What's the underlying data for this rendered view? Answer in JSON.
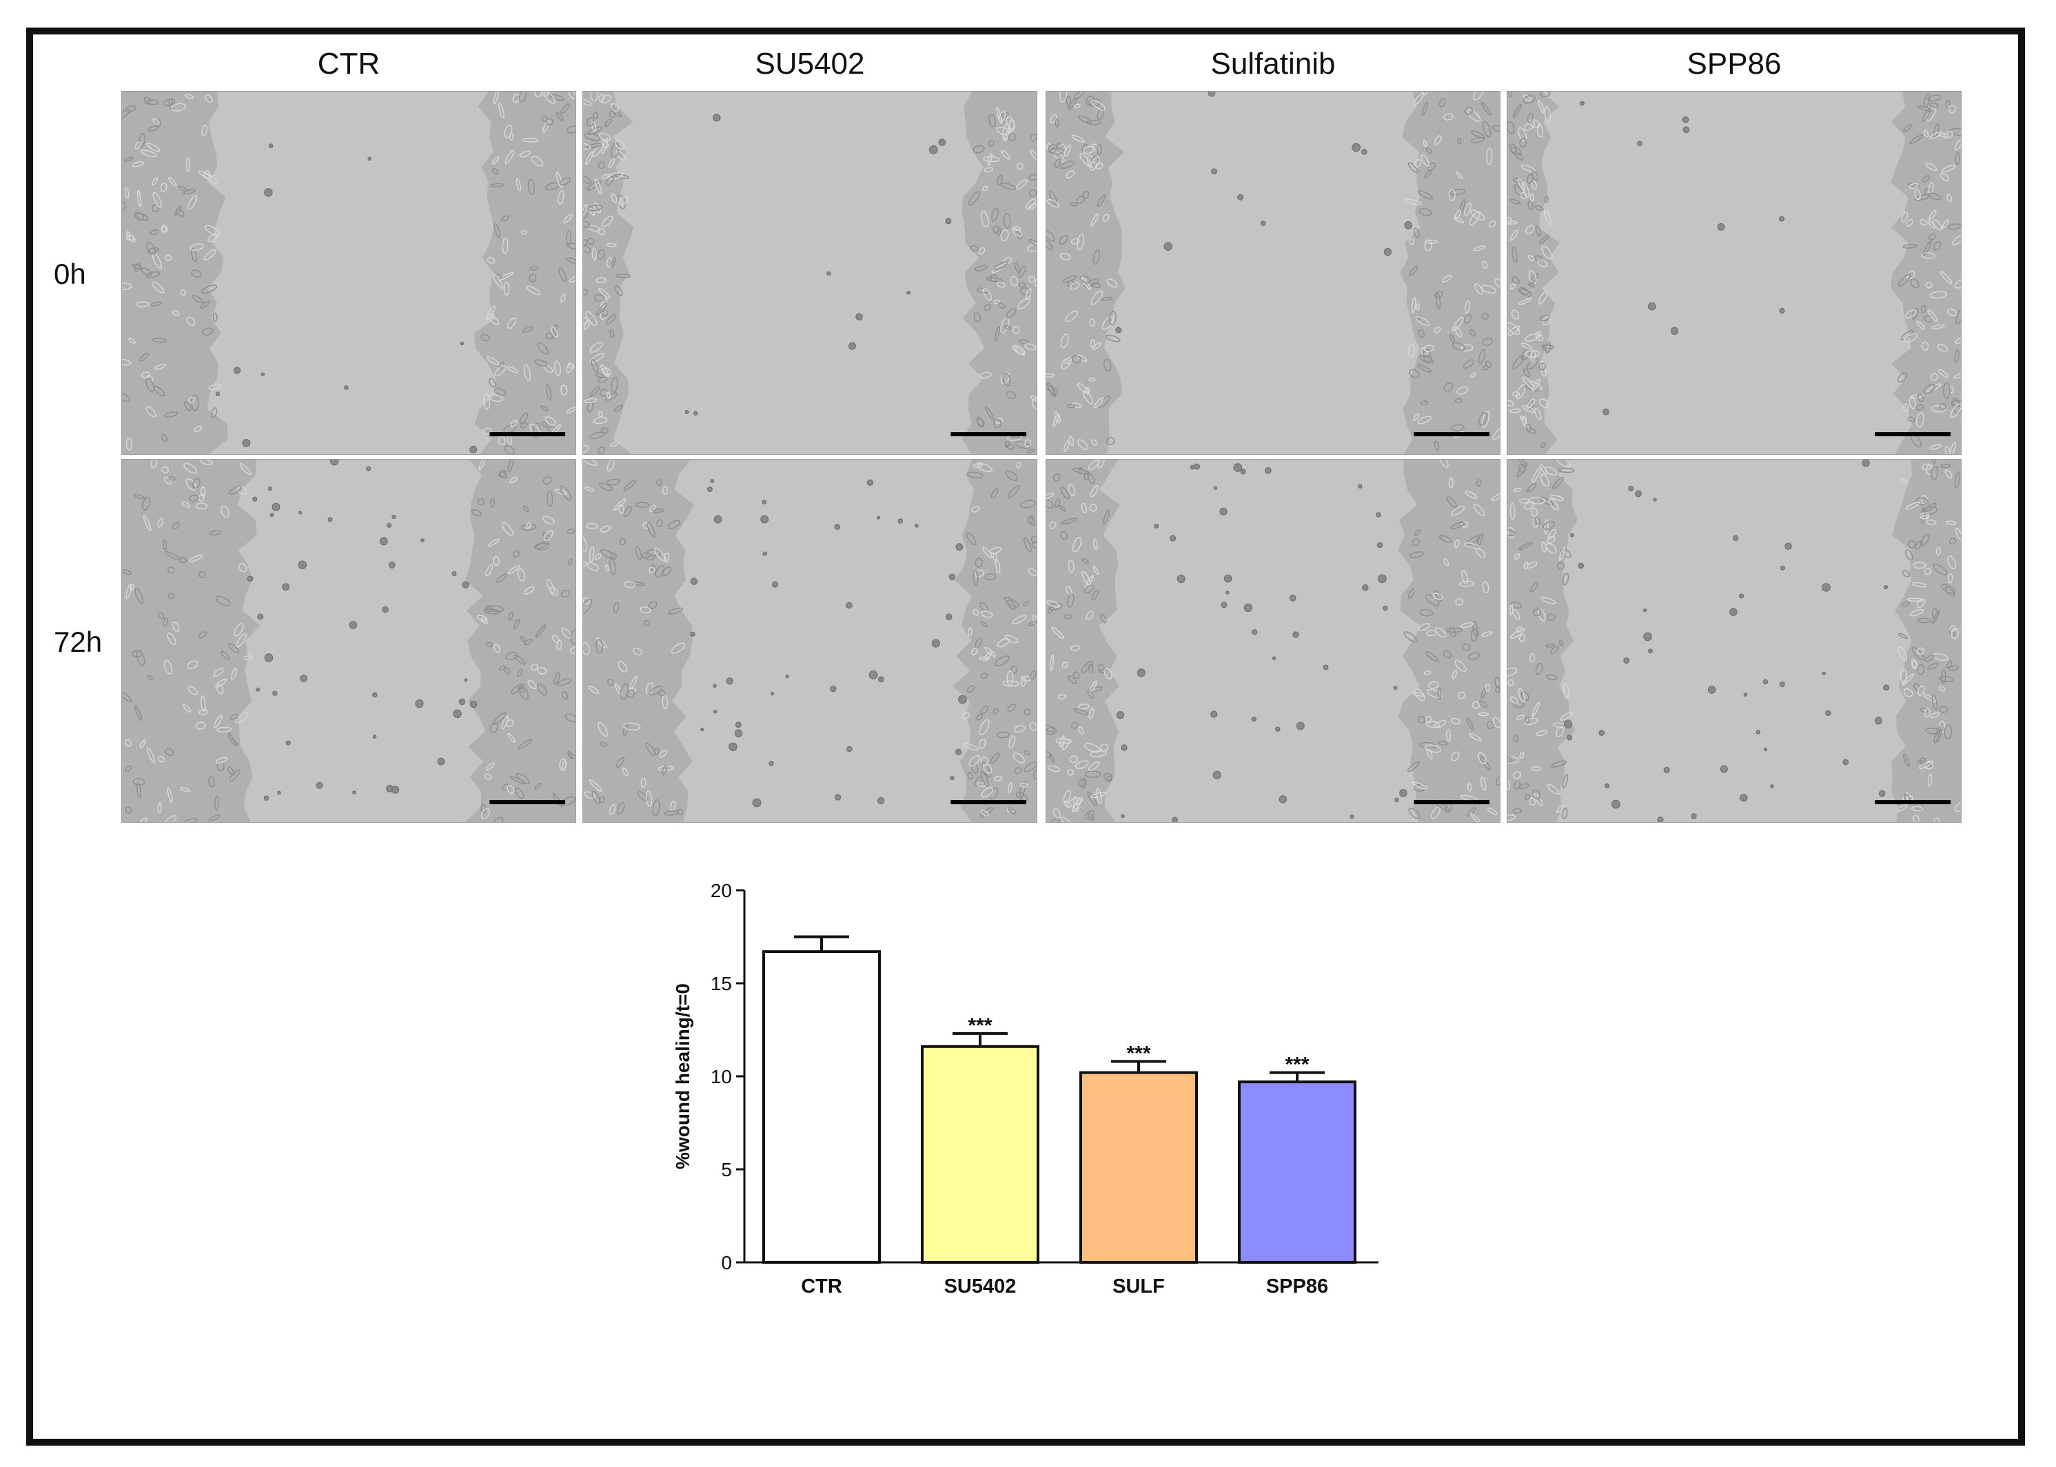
{
  "figure": {
    "columns": [
      "CTR",
      "SU5402",
      "Sulfatinib",
      "SPP86"
    ],
    "rows": [
      "0h",
      "72h"
    ]
  },
  "chart_data": {
    "type": "bar",
    "categories": [
      "CTR",
      "SU5402",
      "SULF",
      "SPP86"
    ],
    "values": [
      16.7,
      11.6,
      10.2,
      9.7
    ],
    "errors": [
      0.8,
      0.7,
      0.6,
      0.5
    ],
    "significance": [
      "",
      "***",
      "***",
      "***"
    ],
    "colors": [
      "#ffffff",
      "#ffff99",
      "#ffbf7f",
      "#8c8cff"
    ],
    "ylabel": "%wound  healing/t=0",
    "xlabel": "",
    "ylim": [
      0,
      20
    ],
    "yticks": [
      0,
      5,
      10,
      15,
      20
    ],
    "title": ""
  }
}
